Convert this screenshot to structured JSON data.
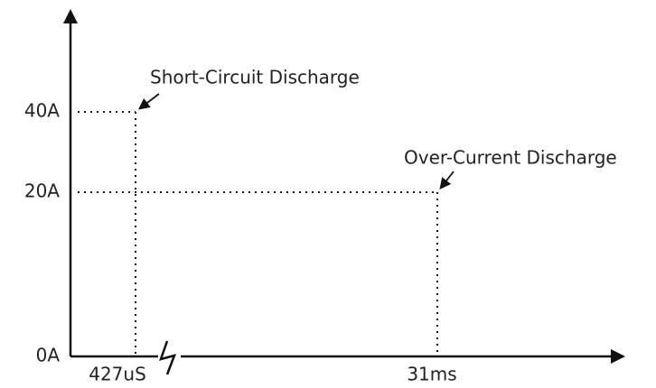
{
  "axes": {
    "y_labels": [
      "40A",
      "20A",
      "0A"
    ],
    "x_labels": [
      "427uS",
      "31ms"
    ]
  },
  "annotations": [
    "Short-Circuit Discharge",
    "Over-Current Discharge"
  ]
}
